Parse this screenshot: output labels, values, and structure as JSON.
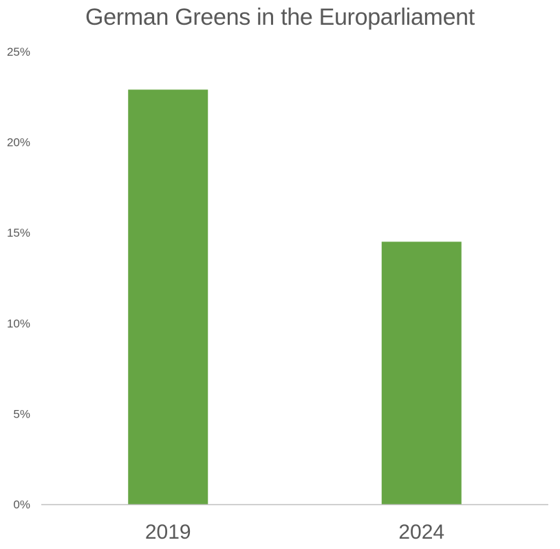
{
  "chart_data": {
    "type": "bar",
    "title": "German Greens in the Europarliament",
    "xlabel": "",
    "ylabel": "",
    "categories": [
      "2019",
      "2024"
    ],
    "values": [
      0.229,
      0.145
    ],
    "ylim": [
      0,
      0.25
    ],
    "yticks": [
      {
        "value": 0.25,
        "label": "25%"
      },
      {
        "value": 0.2,
        "label": "20%"
      },
      {
        "value": 0.15,
        "label": "15%"
      },
      {
        "value": 0.1,
        "label": "10%"
      },
      {
        "value": 0.05,
        "label": "5%"
      },
      {
        "value": 0.0,
        "label": "0%"
      }
    ],
    "grid": false,
    "legend": "none",
    "bar_color": "#66a544",
    "axis_color": "#bfbfbf",
    "text_color": "#595959"
  }
}
